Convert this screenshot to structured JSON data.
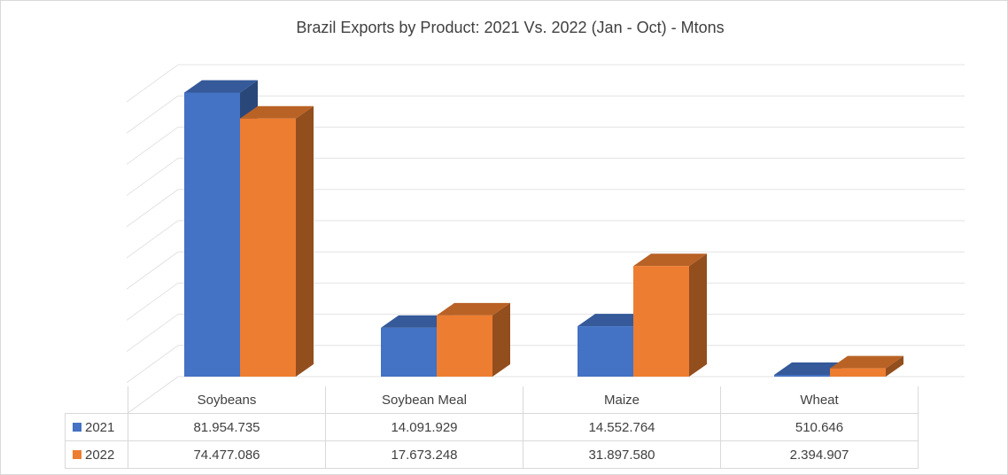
{
  "chart_data": {
    "type": "bar",
    "title": "Brazil Exports by Product: 2021 Vs. 2022 (Jan - Oct) - Mtons",
    "categories": [
      "Soybeans",
      "Soybean Meal",
      "Maize",
      "Wheat"
    ],
    "series": [
      {
        "name": "2021",
        "color": "#4472C4",
        "values": [
          81954735,
          14091929,
          14552764,
          510646
        ],
        "labels": [
          "81.954.735",
          "14.091.929",
          "14.552.764",
          "510.646"
        ]
      },
      {
        "name": "2022",
        "color": "#ED7D31",
        "values": [
          74477086,
          17673248,
          31897580,
          2394907
        ],
        "labels": [
          "74.477.086",
          "17.673.248",
          "31.897.580",
          "2.394.907"
        ]
      }
    ],
    "ylim": [
      0,
      90000000
    ],
    "gridlines": true,
    "legend": "data-table",
    "xlabel": "",
    "ylabel": ""
  }
}
